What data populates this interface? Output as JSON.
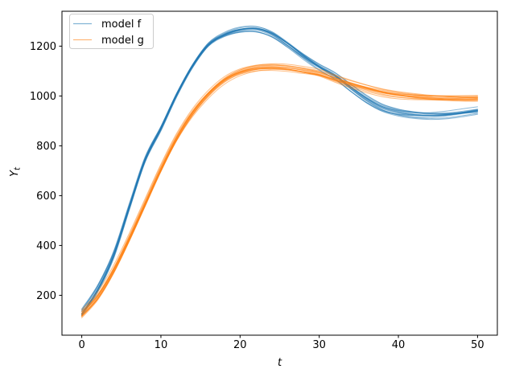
{
  "figure": {
    "background": "#ffffff"
  },
  "chart_data": {
    "type": "line",
    "title": "",
    "xlabel": "t",
    "ylabel_base": "Y",
    "ylabel_sub": "t",
    "x_ticks": [
      0,
      10,
      20,
      30,
      40,
      50
    ],
    "y_ticks": [
      200,
      400,
      600,
      800,
      1000,
      1200
    ],
    "xlim": [
      -2.5,
      52.5
    ],
    "ylim": [
      40,
      1340
    ],
    "grid": false,
    "legend_position": "upper-left",
    "x": [
      0,
      2,
      4,
      6,
      8,
      10,
      12,
      14,
      16,
      18,
      20,
      22,
      24,
      26,
      28,
      30,
      32,
      34,
      36,
      38,
      40,
      42,
      44,
      46,
      48,
      50
    ],
    "series": [
      {
        "name": "model f",
        "color": "#1f77b4",
        "ensemble_lines": 14,
        "spread": 15,
        "alpha": 0.5,
        "values": [
          128,
          225,
          360,
          555,
          745,
          870,
          1005,
          1120,
          1205,
          1245,
          1266,
          1270,
          1250,
          1208,
          1160,
          1117,
          1080,
          1032,
          987,
          953,
          935,
          926,
          922,
          924,
          931,
          940
        ]
      },
      {
        "name": "model g",
        "color": "#ff7f0e",
        "ensemble_lines": 14,
        "spread": 15,
        "alpha": 0.5,
        "values": [
          125,
          195,
          300,
          430,
          570,
          710,
          835,
          935,
          1010,
          1065,
          1097,
          1112,
          1116,
          1112,
          1102,
          1090,
          1068,
          1048,
          1030,
          1015,
          1005,
          999,
          995,
          993,
          992,
          992
        ]
      }
    ]
  }
}
